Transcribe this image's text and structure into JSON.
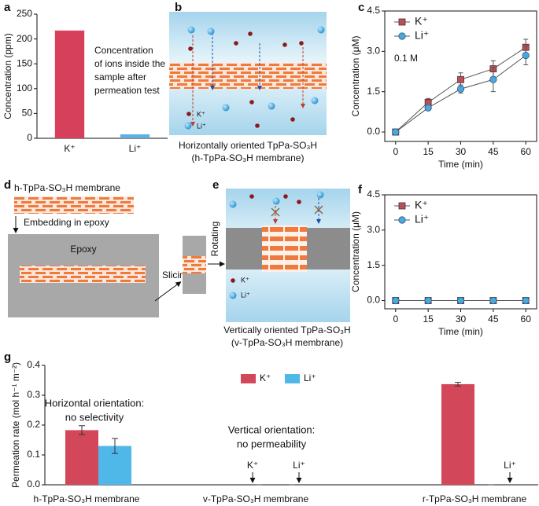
{
  "chart_data": [
    {
      "type": "bar",
      "panel": "a",
      "ylabel": "Concentration (ppm)",
      "categories": [
        "K⁺",
        "Li⁺"
      ],
      "values": [
        217,
        8
      ],
      "colors": [
        "#d6405a",
        "#5fb0e0"
      ],
      "ylim": [
        0,
        250
      ],
      "yticks": [
        0,
        50,
        100,
        150,
        200,
        250
      ],
      "annotation": [
        "Concentration",
        "of ions inside the",
        "sample after",
        "permeation test"
      ]
    },
    {
      "type": "line",
      "panel": "c",
      "xlabel": "Time (min)",
      "ylabel": "Concentration (μM)",
      "x": [
        0,
        15,
        30,
        45,
        60
      ],
      "series": [
        {
          "name": "K⁺",
          "color": "#b5515a",
          "marker": "square",
          "values": [
            0,
            1.1,
            1.95,
            2.35,
            3.15
          ],
          "errors": [
            0.05,
            0.15,
            0.25,
            0.3,
            0.3
          ]
        },
        {
          "name": "Li⁺",
          "color": "#4aa8dc",
          "marker": "circle",
          "values": [
            0,
            0.9,
            1.6,
            1.95,
            2.85
          ],
          "errors": [
            0.05,
            0.1,
            0.15,
            0.45,
            0.35
          ]
        }
      ],
      "xlim": [
        -5,
        65
      ],
      "ylim": [
        -0.35,
        4.5
      ],
      "xticks": [
        0,
        15,
        30,
        45,
        60
      ],
      "yticks": [
        {
          "value": 0,
          "label": "0.0"
        },
        1.5,
        {
          "value": 3,
          "label": "3.0"
        },
        4.5
      ],
      "annotation": "0.1 M",
      "legend": "upper left"
    },
    {
      "type": "line",
      "panel": "f",
      "xlabel": "Time (min)",
      "ylabel": "Concentration (μM)",
      "x": [
        0,
        15,
        30,
        45,
        60
      ],
      "series": [
        {
          "name": "K⁺",
          "color": "#b5515a",
          "marker": "square",
          "values": [
            0,
            0,
            0,
            0,
            0
          ]
        },
        {
          "name": "Li⁺",
          "color": "#4aa8dc",
          "marker": "circle",
          "values": [
            0,
            0,
            0,
            0,
            0
          ]
        }
      ],
      "xlim": [
        -5,
        65
      ],
      "ylim": [
        -0.35,
        4.5
      ],
      "xticks": [
        0,
        15,
        30,
        45,
        60
      ],
      "yticks": [
        {
          "value": 0,
          "label": "0.0"
        },
        1.5,
        {
          "value": 3,
          "label": "3.0"
        },
        4.5
      ],
      "legend": "upper left"
    },
    {
      "type": "grouped_bar",
      "panel": "g",
      "ylabel": "Permeation rate (mol h⁻¹ m⁻²)",
      "categories": [
        "h-TpPa-SO₃H membrane",
        "v-TpPa-SO₃H membrane",
        "r-TpPa-SO₃H membrane"
      ],
      "series": [
        {
          "name": "K⁺",
          "color": "#d2475a",
          "values": [
            0.183,
            0,
            0.337
          ],
          "errors": [
            0.015,
            0,
            0.006
          ]
        },
        {
          "name": "Li⁺",
          "color": "#4fb8e8",
          "values": [
            0.13,
            0,
            0
          ],
          "errors": [
            0.025,
            0,
            0
          ]
        }
      ],
      "ylim": [
        0,
        0.4
      ],
      "yticks": [
        {
          "value": 0,
          "label": "0.0"
        },
        0.1,
        0.2,
        0.3,
        0.4
      ],
      "legend": "upper center",
      "annotations": [
        [
          "Horizontal orientation:",
          "no selectivity"
        ],
        [
          "Vertical orientation:",
          "no permeability"
        ]
      ],
      "arrow_labels": [
        "K⁺",
        "Li⁺",
        "Li⁺"
      ]
    }
  ],
  "diagrams": {
    "b": {
      "panel": "b",
      "legend": [
        "K⁺",
        "Li⁺"
      ],
      "caption": [
        "Horizontally oriented TpPa-SO₃H",
        "(h-TpPa-SO₃H membrane)"
      ]
    },
    "d": {
      "panel": "d",
      "membrane": "h-TpPa-SO₃H membrane",
      "step1": "Embedding in epoxy",
      "block": "Epoxy",
      "step2": "Slicing",
      "step3": "Rotating"
    },
    "e": {
      "panel": "e",
      "legend": [
        "K⁺",
        "Li⁺"
      ],
      "caption": [
        "Vertically oriented TpPa-SO₃H",
        "(v-TpPa-SO₃H membrane)"
      ]
    }
  }
}
